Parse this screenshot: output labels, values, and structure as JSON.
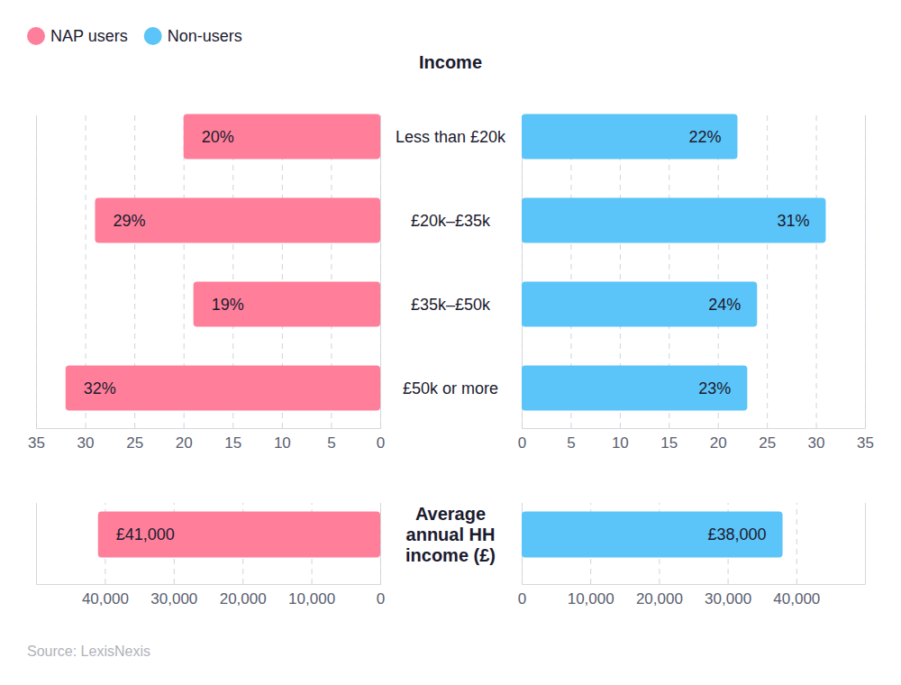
{
  "source": "Source: LexisNexis",
  "chart_data": [
    {
      "type": "bar",
      "orientation": "horizontal",
      "title": "Income",
      "categories": [
        "Less than £20k",
        "£20k–£35k",
        "£35k–£50k",
        "£50k or more"
      ],
      "series": [
        {
          "name": "NAP users",
          "color": "#ff7f9a",
          "values": [
            20,
            29,
            19,
            32
          ],
          "value_labels": [
            "20%",
            "29%",
            "19%",
            "32%"
          ]
        },
        {
          "name": "Non-users",
          "color": "#5bc4f8",
          "values": [
            22,
            31,
            24,
            23
          ],
          "value_labels": [
            "22%",
            "31%",
            "24%",
            "23%"
          ]
        }
      ],
      "xlim": [
        0,
        35
      ],
      "xticks": [
        0,
        5,
        10,
        15,
        20,
        25,
        30,
        35
      ],
      "grid": true,
      "data_labels": true,
      "legend": "top-left"
    },
    {
      "type": "bar",
      "orientation": "horizontal",
      "categories": [
        "Average annual HH income (£)"
      ],
      "series": [
        {
          "name": "NAP users",
          "color": "#ff7f9a",
          "values": [
            41000
          ],
          "value_labels": [
            "£41,000"
          ]
        },
        {
          "name": "Non-users",
          "color": "#5bc4f8",
          "values": [
            38000
          ],
          "value_labels": [
            "£38,000"
          ]
        }
      ],
      "xlim": [
        0,
        50000
      ],
      "xticks": [
        0,
        {
          "value": 10000,
          "label": "10,000"
        },
        {
          "value": 20000,
          "label": "20,000"
        },
        {
          "value": 30000,
          "label": "30,000"
        },
        {
          "value": 40000,
          "label": "40,000"
        }
      ],
      "grid": true,
      "data_labels": true
    }
  ]
}
